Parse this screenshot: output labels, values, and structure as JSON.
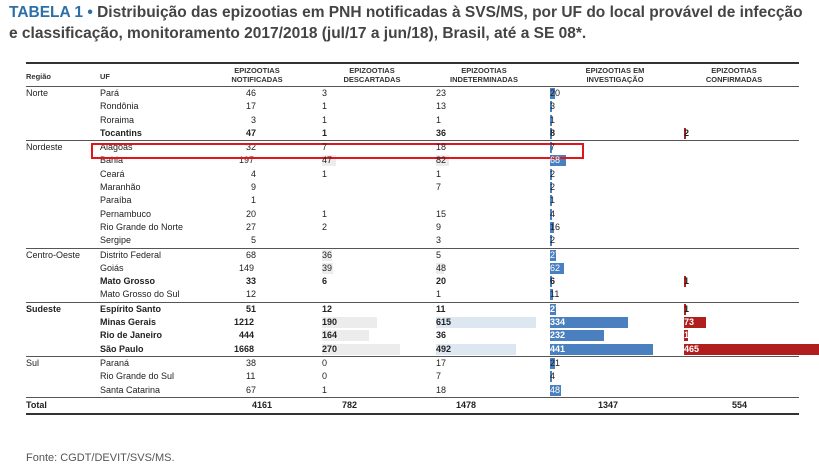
{
  "title": {
    "label": "TABELA 1 •",
    "text": "Distribuição das epizootias em PNH notificadas à SVS/MS, por UF do local provável de infecção e classificação, monitoramento 2017/2018 (jul/17 a jun/18), Brasil, até a SE 08*."
  },
  "headers": {
    "regiao": "Região",
    "uf": "UF",
    "notificadas": "EPIZOOTIAS NOTIFICADAS",
    "descartadas": "EPIZOOTIAS DESCARTADAS",
    "indeterminadas": "EPIZOOTIAS INDETERMINADAS",
    "investigacao": "EPIZOOTIAS EM INVESTIGAÇÃO",
    "confirmadas": "EPIZOOTIAS CONFIRMADAS"
  },
  "colors": {
    "investigacao": "#4a7fc0",
    "confirmadas": "#b01e1e",
    "highlight": "#e0161a",
    "title_label": "#2a6fa8"
  },
  "groups": [
    {
      "region": "Norte",
      "rows": [
        {
          "uf": "Pará",
          "notificadas": "46",
          "descartadas": "3",
          "indeterminadas": "23",
          "investigacao": "20",
          "confirmadas": "",
          "bold": false
        },
        {
          "uf": "Rondônia",
          "notificadas": "17",
          "descartadas": "1",
          "indeterminadas": "13",
          "investigacao": "3",
          "confirmadas": "",
          "bold": false
        },
        {
          "uf": "Roraima",
          "notificadas": "3",
          "descartadas": "1",
          "indeterminadas": "1",
          "investigacao": "1",
          "confirmadas": "",
          "bold": false
        },
        {
          "uf": "Tocantins",
          "notificadas": "47",
          "descartadas": "1",
          "indeterminadas": "36",
          "investigacao": "8",
          "confirmadas": "2",
          "bold": true
        }
      ]
    },
    {
      "region": "Nordeste",
      "rows": [
        {
          "uf": "Alagoas",
          "notificadas": "32",
          "descartadas": "7",
          "indeterminadas": "18",
          "investigacao": "7",
          "confirmadas": "",
          "bold": false
        },
        {
          "uf": "Bahia",
          "notificadas": "197",
          "descartadas": "47",
          "indeterminadas": "82",
          "investigacao": "68",
          "confirmadas": "",
          "bold": false
        },
        {
          "uf": "Ceará",
          "notificadas": "4",
          "descartadas": "1",
          "indeterminadas": "1",
          "investigacao": "2",
          "confirmadas": "",
          "bold": false
        },
        {
          "uf": "Maranhão",
          "notificadas": "9",
          "descartadas": "",
          "indeterminadas": "7",
          "investigacao": "2",
          "confirmadas": "",
          "bold": false
        },
        {
          "uf": "Paraíba",
          "notificadas": "1",
          "descartadas": "",
          "indeterminadas": "",
          "investigacao": "1",
          "confirmadas": "",
          "bold": false
        },
        {
          "uf": "Pernambuco",
          "notificadas": "20",
          "descartadas": "1",
          "indeterminadas": "15",
          "investigacao": "4",
          "confirmadas": "",
          "bold": false
        },
        {
          "uf": "Rio Grande do Norte",
          "notificadas": "27",
          "descartadas": "2",
          "indeterminadas": "9",
          "investigacao": "16",
          "confirmadas": "",
          "bold": false
        },
        {
          "uf": "Sergipe",
          "notificadas": "5",
          "descartadas": "",
          "indeterminadas": "3",
          "investigacao": "2",
          "confirmadas": "",
          "bold": false
        }
      ]
    },
    {
      "region": "Centro-Oeste",
      "rows": [
        {
          "uf": "Distrito Federal",
          "notificadas": "68",
          "descartadas": "36",
          "indeterminadas": "5",
          "investigacao": "27",
          "confirmadas": "",
          "bold": false
        },
        {
          "uf": "Goiás",
          "notificadas": "149",
          "descartadas": "39",
          "indeterminadas": "48",
          "investigacao": "62",
          "confirmadas": "",
          "bold": false
        },
        {
          "uf": "Mato Grosso",
          "notificadas": "33",
          "descartadas": "6",
          "indeterminadas": "20",
          "investigacao": "6",
          "confirmadas": "1",
          "bold": true
        },
        {
          "uf": "Mato Grosso do Sul",
          "notificadas": "12",
          "descartadas": "",
          "indeterminadas": "1",
          "investigacao": "11",
          "confirmadas": "",
          "bold": false
        }
      ]
    },
    {
      "region": "Sudeste",
      "rows": [
        {
          "uf": "Espírito Santo",
          "notificadas": "51",
          "descartadas": "12",
          "indeterminadas": "11",
          "investigacao": "27",
          "confirmadas": "1",
          "bold": true
        },
        {
          "uf": "Minas Gerais",
          "notificadas": "1212",
          "descartadas": "190",
          "indeterminadas": "615",
          "investigacao": "334",
          "confirmadas": "73",
          "bold": true
        },
        {
          "uf": "Rio de Janeiro",
          "notificadas": "444",
          "descartadas": "164",
          "indeterminadas": "36",
          "investigacao": "232",
          "confirmadas": "12",
          "bold": true
        },
        {
          "uf": "São Paulo",
          "notificadas": "1668",
          "descartadas": "270",
          "indeterminadas": "492",
          "investigacao": "441",
          "confirmadas": "465",
          "bold": true
        }
      ]
    },
    {
      "region": "Sul",
      "rows": [
        {
          "uf": "Paraná",
          "notificadas": "38",
          "descartadas": "0",
          "indeterminadas": "17",
          "investigacao": "21",
          "confirmadas": "",
          "bold": false
        },
        {
          "uf": "Rio Grande do Sul",
          "notificadas": "11",
          "descartadas": "0",
          "indeterminadas": "7",
          "investigacao": "4",
          "confirmadas": "",
          "bold": false
        },
        {
          "uf": "Santa Catarina",
          "notificadas": "67",
          "descartadas": "1",
          "indeterminadas": "18",
          "investigacao": "48",
          "confirmadas": "",
          "bold": false
        }
      ]
    }
  ],
  "total": {
    "label": "Total",
    "notificadas": "4161",
    "descartadas": "782",
    "indeterminadas": "1478",
    "investigacao": "1347",
    "confirmadas": "554"
  },
  "footer": "Fonte: CGDT/DEVIT/SVS/MS."
}
